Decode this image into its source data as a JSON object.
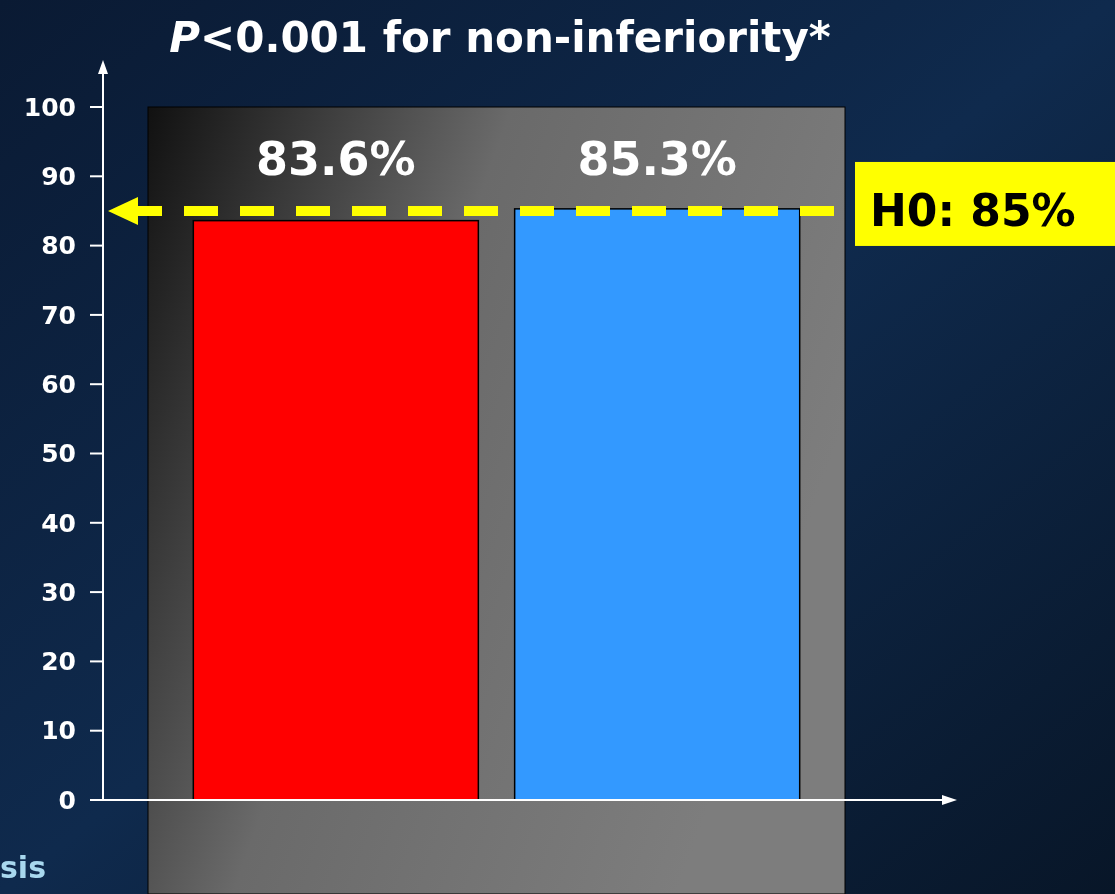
{
  "chart_data": {
    "type": "bar",
    "title": "P<0.001 for non-inferiority*",
    "categories": [
      null,
      null
    ],
    "values": [
      83.6,
      85.3
    ],
    "colors": [
      "#ff0000",
      "#3399ff"
    ],
    "value_labels": [
      "83.6%",
      "85.3%"
    ],
    "ylim": [
      0,
      100
    ],
    "yticks": [
      0,
      10,
      20,
      30,
      40,
      50,
      60,
      70,
      80,
      90,
      100
    ],
    "tick_labels": "y",
    "ref_lines": [
      {
        "axis": "y",
        "value": 85,
        "label": "H0: 85%",
        "color": "#ffff00",
        "line_style": "dashed"
      }
    ],
    "annotations": [
      "sis"
    ]
  }
}
